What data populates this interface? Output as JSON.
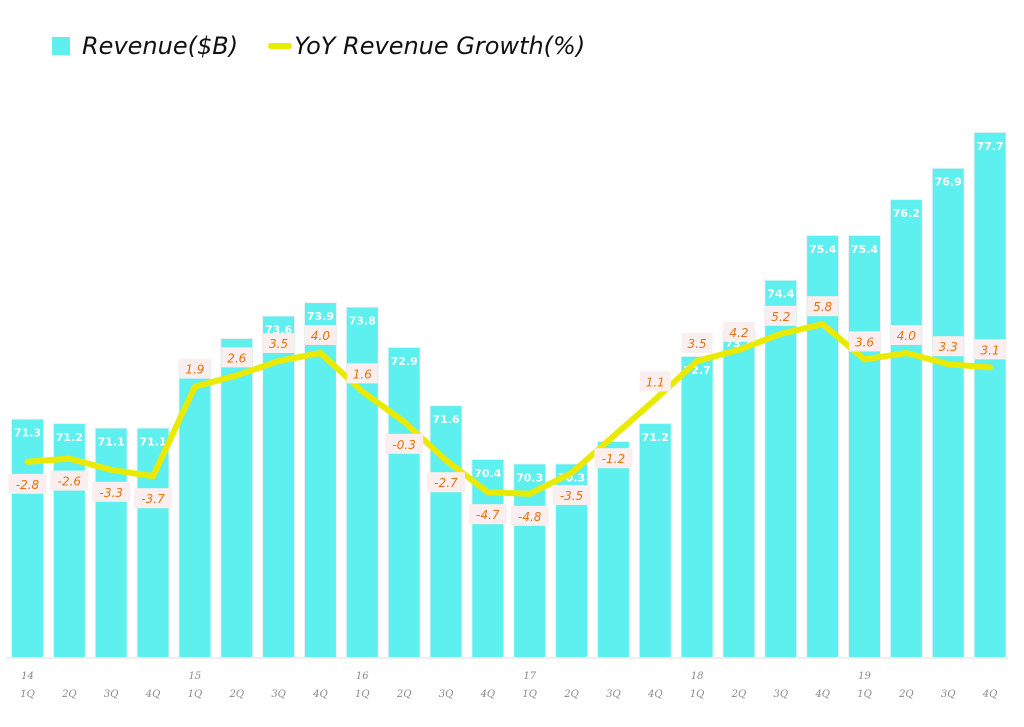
{
  "chart_data": {
    "type": "bar",
    "title": "",
    "xlabel": "",
    "ylabel": "",
    "legend_position": "top-left",
    "grid": false,
    "categories": [
      "1Q",
      "2Q",
      "3Q",
      "4Q",
      "1Q",
      "2Q",
      "3Q",
      "4Q",
      "1Q",
      "2Q",
      "3Q",
      "4Q",
      "1Q",
      "2Q",
      "3Q",
      "4Q",
      "1Q",
      "2Q",
      "3Q",
      "4Q",
      "1Q",
      "2Q",
      "3Q",
      "4Q"
    ],
    "year_labels": [
      "14",
      "",
      "",
      "",
      "15",
      "",
      "",
      "",
      "16",
      "",
      "",
      "",
      "17",
      "",
      "",
      "",
      "18",
      "",
      "",
      "",
      "19",
      "",
      "",
      ""
    ],
    "series": [
      {
        "name": "Revenue($B)",
        "type": "bar",
        "color": "#5ef0ef",
        "values": [
          71.3,
          71.2,
          71.1,
          71.1,
          72.6,
          73.1,
          73.6,
          73.9,
          73.8,
          72.9,
          71.6,
          70.4,
          70.3,
          70.3,
          70.8,
          71.2,
          72.7,
          73.3,
          74.4,
          75.4,
          75.4,
          76.2,
          76.9,
          77.7
        ]
      },
      {
        "name": "YoY Revenue Growth(%)",
        "type": "line",
        "color": "#eaea00",
        "values": [
          -2.8,
          -2.6,
          -3.3,
          -3.7,
          1.9,
          2.6,
          3.5,
          4.0,
          1.6,
          -0.3,
          -2.7,
          -4.7,
          -4.8,
          -3.5,
          -1.2,
          1.1,
          3.5,
          4.2,
          5.2,
          5.8,
          3.6,
          4.0,
          3.3,
          3.1
        ]
      }
    ],
    "ylim_bar": [
      66,
      78.5
    ],
    "ylim_line": [
      -15,
      20
    ],
    "legend": [
      "Revenue($B)",
      "YoY Revenue Growth(%)"
    ]
  },
  "legend": {
    "revenue_label": "Revenue($B)",
    "growth_label": "YoY Revenue Growth(%)"
  }
}
